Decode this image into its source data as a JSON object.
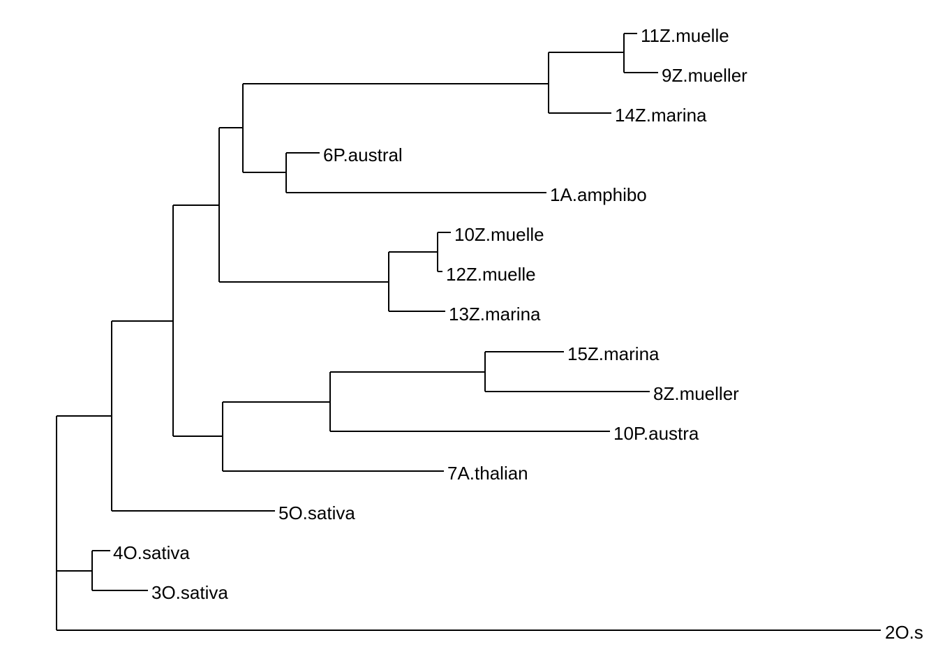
{
  "tree": {
    "type": "phylogram",
    "line_color": "#000000",
    "tips": [
      {
        "id": "t11Zm",
        "label": "11Z.muelle"
      },
      {
        "id": "t9Zm",
        "label": "9Z.mueller"
      },
      {
        "id": "t14Zma",
        "label": "14Z.marina"
      },
      {
        "id": "t6Pa",
        "label": "6P.austral"
      },
      {
        "id": "t1Aa",
        "label": "1A.amphibo"
      },
      {
        "id": "t10Zm",
        "label": "10Z.muelle"
      },
      {
        "id": "t12Zm",
        "label": "12Z.muelle"
      },
      {
        "id": "t13Zma",
        "label": "13Z.marina"
      },
      {
        "id": "t15Zma",
        "label": "15Z.marina"
      },
      {
        "id": "t8Zm",
        "label": "8Z.mueller"
      },
      {
        "id": "t10Pa",
        "label": "10P.austra"
      },
      {
        "id": "t7At",
        "label": "7A.thalian"
      },
      {
        "id": "t5Os",
        "label": "5O.sativa"
      },
      {
        "id": "t4Os",
        "label": "4O.sativa"
      },
      {
        "id": "t3Os",
        "label": "3O.sativa"
      },
      {
        "id": "t2Os",
        "label": "2O.s"
      }
    ]
  }
}
